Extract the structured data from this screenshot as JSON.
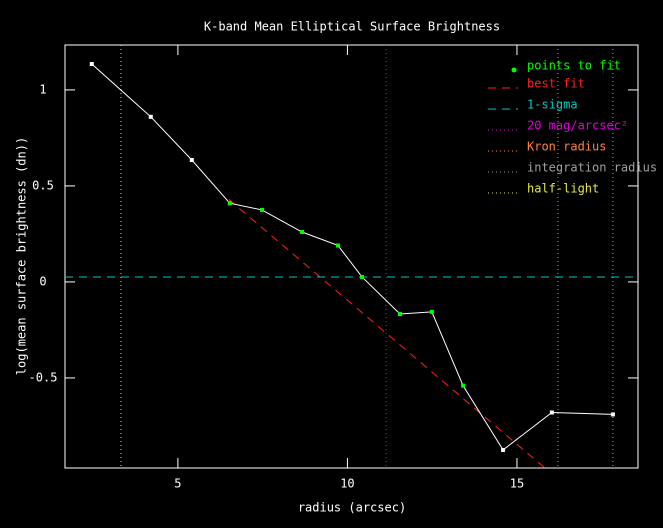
{
  "chart_data": {
    "type": "line",
    "title": "K-band Mean Elliptical Surface Brightness",
    "x_label": "radius (arcsec)",
    "y_label": "log(mean surface brightness (dn))",
    "xlim": [
      1.67,
      18.57
    ],
    "ylim": [
      -0.969,
      1.234
    ],
    "xticks": [
      5,
      10,
      15
    ],
    "yticks": [
      -0.5,
      0,
      0.5,
      1
    ],
    "profile": {
      "color": "#ffffff",
      "x": [
        2.46,
        4.2,
        5.41,
        6.53,
        7.48,
        8.66,
        9.72,
        10.43,
        11.55,
        12.49,
        13.41,
        14.59,
        16.03,
        17.83
      ],
      "values": [
        1.135,
        0.86,
        0.635,
        0.41,
        0.375,
        0.26,
        0.19,
        0.026,
        -0.167,
        -0.156,
        -0.54,
        -0.875,
        -0.68,
        -0.69
      ],
      "marker_colors": [
        "#ffffff",
        "#ffffff",
        "#ffffff",
        "#00ff00",
        "#00ff00",
        "#00ff00",
        "#00ff00",
        "#00ff00",
        "#00ff00",
        "#00ff00",
        "#00ff00",
        "#ffffff",
        "#ffffff",
        "#ffffff"
      ]
    },
    "markers": {
      "name": "points to fit",
      "color": "#00ff00"
    },
    "overlays": [
      {
        "name": "best fit",
        "color": "#ff2020",
        "dash": "dashed",
        "x": [
          6.5,
          15.83
        ],
        "values": [
          0.43,
          -0.97
        ]
      },
      {
        "name": "1-sigma",
        "color": "#00c8c8",
        "dash": "dashed",
        "hline": 0.026
      },
      {
        "name": "20 mag/arcsec²",
        "color": "#e000e0",
        "dash": "dotted",
        "vline": 11.14
      },
      {
        "name": "Kron radius",
        "color": "#ff8040",
        "dash": "dotted",
        "vline": 16.21
      },
      {
        "name": "integration radius",
        "color": "#a0a0a0",
        "dash": "dotted",
        "vline": 17.83
      },
      {
        "name": "half-light",
        "color": "#e8e840",
        "dash": "dotted",
        "vline": 3.32
      }
    ]
  }
}
